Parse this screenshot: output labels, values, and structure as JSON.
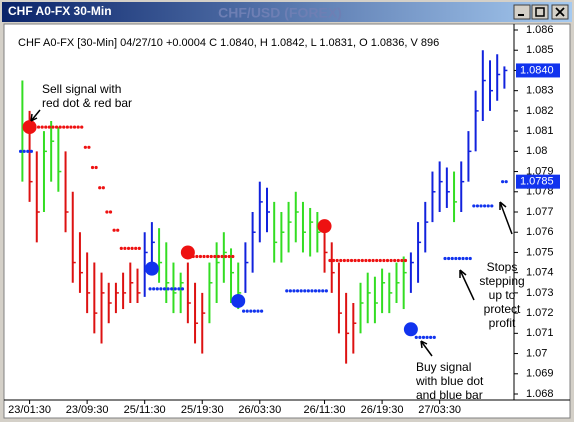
{
  "window": {
    "title": "CHF A0-FX 30-Min",
    "center_title": "CHF/USD (FOREX)"
  },
  "chart_data": {
    "type": "ohlc",
    "title": "CHF A0-FX [30-Min] 04/27/10 +0.0004 C 1.0840, H 1.0842, L 1.0831, O 1.0836, V 896",
    "xlim": [
      -2,
      67.5
    ],
    "xticks": [
      {
        "value": 1,
        "label": "23/01:30"
      },
      {
        "value": 9,
        "label": "23/09:30"
      },
      {
        "value": 17,
        "label": "25/11:30"
      },
      {
        "value": 25,
        "label": "25/19:30"
      },
      {
        "value": 33,
        "label": "26/03:30"
      },
      {
        "value": 42,
        "label": "26/11:30"
      },
      {
        "value": 50,
        "label": "26/19:30"
      },
      {
        "value": 58,
        "label": "27/03:30"
      }
    ],
    "ylim": [
      1.068,
      1.086
    ],
    "yticks": [
      1.068,
      1.069,
      1.07,
      1.071,
      1.072,
      1.073,
      1.074,
      1.075,
      1.076,
      1.077,
      1.078,
      1.079,
      1.08,
      1.081,
      1.082,
      1.083,
      1.084,
      1.085,
      1.086
    ],
    "high": [
      1.0835,
      1.082,
      1.08,
      1.081,
      1.0815,
      1.0812,
      1.08,
      1.078,
      1.076,
      1.075,
      1.0745,
      1.074,
      1.0735,
      1.0735,
      1.074,
      1.0745,
      1.0742,
      1.076,
      1.0765,
      1.0762,
      1.0755,
      1.0745,
      1.074,
      1.0745,
      1.0735,
      1.073,
      1.0745,
      1.0755,
      1.076,
      1.0752,
      1.0745,
      1.0755,
      1.077,
      1.0785,
      1.0782,
      1.0775,
      1.077,
      1.0775,
      1.078,
      1.0775,
      1.0772,
      1.077,
      1.0765,
      1.0755,
      1.0745,
      1.073,
      1.0725,
      1.0735,
      1.074,
      1.0738,
      1.0742,
      1.074,
      1.0745,
      1.0748,
      1.075,
      1.0765,
      1.0775,
      1.079,
      1.0795,
      1.0792,
      1.079,
      1.0795,
      1.081,
      1.083,
      1.085,
      1.0845,
      1.0848,
      1.0842
    ],
    "low": [
      1.0785,
      1.0775,
      1.0755,
      1.077,
      1.0785,
      1.078,
      1.076,
      1.0735,
      1.073,
      1.072,
      1.071,
      1.0705,
      1.0715,
      1.072,
      1.0722,
      1.0725,
      1.0725,
      1.0728,
      1.074,
      1.0735,
      1.0725,
      1.072,
      1.072,
      1.0715,
      1.0705,
      1.07,
      1.0715,
      1.0725,
      1.0735,
      1.0725,
      1.0722,
      1.073,
      1.074,
      1.0755,
      1.076,
      1.0745,
      1.0745,
      1.075,
      1.0755,
      1.075,
      1.0748,
      1.075,
      1.074,
      1.073,
      1.071,
      1.0695,
      1.07,
      1.071,
      1.0715,
      1.0715,
      1.072,
      1.072,
      1.0725,
      1.0722,
      1.073,
      1.0735,
      1.075,
      1.0765,
      1.077,
      1.0772,
      1.0765,
      1.077,
      1.0785,
      1.08,
      1.0815,
      1.082,
      1.0825,
      1.0831
    ],
    "close": [
      1.08,
      1.0785,
      1.077,
      1.08,
      1.0805,
      1.079,
      1.077,
      1.0745,
      1.074,
      1.073,
      1.072,
      1.073,
      1.0725,
      1.073,
      1.073,
      1.0735,
      1.073,
      1.075,
      1.0755,
      1.0745,
      1.0735,
      1.073,
      1.0735,
      1.0725,
      1.0715,
      1.072,
      1.0735,
      1.0745,
      1.075,
      1.074,
      1.073,
      1.0745,
      1.076,
      1.0775,
      1.077,
      1.0755,
      1.076,
      1.0765,
      1.077,
      1.076,
      1.0765,
      1.076,
      1.075,
      1.074,
      1.072,
      1.071,
      1.0715,
      1.0725,
      1.073,
      1.0725,
      1.0735,
      1.073,
      1.0735,
      1.074,
      1.0745,
      1.0755,
      1.0765,
      1.078,
      1.0785,
      1.078,
      1.0775,
      1.0785,
      1.08,
      1.082,
      1.0835,
      1.083,
      1.0838,
      1.084
    ],
    "bar_colors": [
      "#33dd22",
      "#dd1111",
      "#dd1111",
      "#33dd22",
      "#33dd22",
      "#33dd22",
      "#dd1111",
      "#dd1111",
      "#dd1111",
      "#dd1111",
      "#dd1111",
      "#dd1111",
      "#dd1111",
      "#dd1111",
      "#dd1111",
      "#dd1111",
      "#dd1111",
      "#1122dd",
      "#1122dd",
      "#33dd22",
      "#33dd22",
      "#33dd22",
      "#33dd22",
      "#dd1111",
      "#dd1111",
      "#dd1111",
      "#33dd22",
      "#33dd22",
      "#33dd22",
      "#33dd22",
      "#33dd22",
      "#1122dd",
      "#1122dd",
      "#1122dd",
      "#1122dd",
      "#33dd22",
      "#33dd22",
      "#33dd22",
      "#33dd22",
      "#33dd22",
      "#33dd22",
      "#33dd22",
      "#dd1111",
      "#dd1111",
      "#dd1111",
      "#dd1111",
      "#dd1111",
      "#33dd22",
      "#33dd22",
      "#33dd22",
      "#33dd22",
      "#33dd22",
      "#33dd22",
      "#33dd22",
      "#1122dd",
      "#1122dd",
      "#1122dd",
      "#1122dd",
      "#1122dd",
      "#1122dd",
      "#33dd22",
      "#1122dd",
      "#1122dd",
      "#1122dd",
      "#1122dd",
      "#1122dd",
      "#1122dd",
      "#1122dd"
    ],
    "sell_stops": {
      "color": "#ee1111",
      "values": [
        null,
        1.0812,
        1.0812,
        1.0812,
        1.0812,
        1.0812,
        1.0812,
        1.0812,
        1.0812,
        1.0802,
        1.0792,
        1.0782,
        1.077,
        1.0761,
        1.0752,
        1.0752,
        1.0752,
        null,
        null,
        null,
        null,
        null,
        null,
        null,
        1.0748,
        1.0748,
        1.0748,
        1.0748,
        1.0748,
        1.0748,
        null,
        null,
        null,
        null,
        null,
        null,
        null,
        null,
        null,
        null,
        null,
        null,
        null,
        1.0746,
        1.0746,
        1.0746,
        1.0746,
        1.0746,
        1.0746,
        1.0746,
        1.0746,
        1.0746,
        1.0746,
        1.0746,
        null,
        null,
        null,
        null,
        null,
        null,
        null,
        null,
        null,
        null,
        null,
        null,
        null,
        null
      ]
    },
    "buy_stops": {
      "color": "#1133ee",
      "values": [
        1.08,
        1.08,
        null,
        null,
        null,
        null,
        null,
        null,
        null,
        null,
        null,
        null,
        null,
        null,
        null,
        null,
        null,
        null,
        1.0732,
        1.0732,
        1.0732,
        1.0732,
        1.0732,
        null,
        null,
        null,
        null,
        null,
        null,
        null,
        null,
        1.0721,
        1.0721,
        1.0721,
        null,
        null,
        null,
        1.0731,
        1.0731,
        1.0731,
        1.0731,
        1.0731,
        1.0731,
        null,
        null,
        null,
        null,
        null,
        null,
        null,
        null,
        null,
        null,
        null,
        null,
        1.0708,
        1.0708,
        1.0708,
        null,
        1.0747,
        1.0747,
        1.0747,
        1.0747,
        1.0773,
        1.0773,
        1.0773,
        null,
        1.0785
      ]
    },
    "signals": [
      {
        "x": 1,
        "value": 1.0812,
        "color": "#ee1111"
      },
      {
        "x": 18,
        "value": 1.0742,
        "color": "#1133ee"
      },
      {
        "x": 23,
        "value": 1.075,
        "color": "#ee1111"
      },
      {
        "x": 30,
        "value": 1.0726,
        "color": "#1133ee"
      },
      {
        "x": 42,
        "value": 1.0763,
        "color": "#ee1111"
      },
      {
        "x": 54,
        "value": 1.0712,
        "color": "#1133ee"
      }
    ],
    "price_labels": [
      {
        "value": 1.084,
        "label": "1.0840"
      },
      {
        "value": 1.0785,
        "label": "1.0785"
      }
    ],
    "annotations": [
      {
        "lines": [
          "Sell signal with",
          "red dot & red bar"
        ]
      },
      {
        "lines": [
          "Buy signal",
          "with blue dot",
          "and blue bar"
        ]
      },
      {
        "lines": [
          "Stops",
          "stepping",
          "up to",
          "protect",
          "profit"
        ]
      }
    ]
  }
}
